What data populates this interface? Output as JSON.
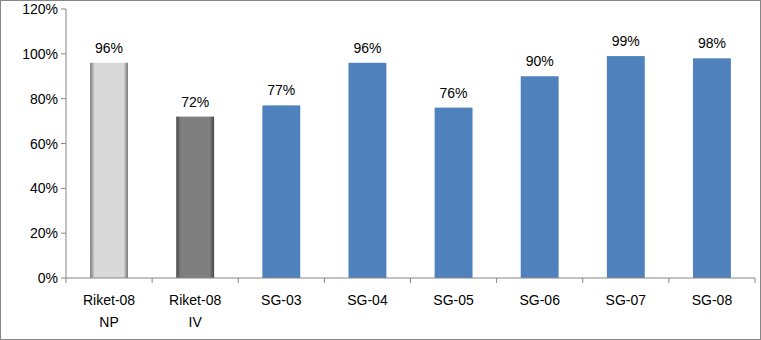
{
  "chart_data": {
    "type": "bar",
    "categories": [
      "Riket-08 NP",
      "Riket-08 IV",
      "SG-03",
      "SG-04",
      "SG-05",
      "SG-06",
      "SG-07",
      "SG-08"
    ],
    "values": [
      96,
      72,
      77,
      96,
      76,
      90,
      99,
      98
    ],
    "value_labels": [
      "96%",
      "72%",
      "77%",
      "96%",
      "76%",
      "90%",
      "99%",
      "98%"
    ],
    "colors": [
      "#d9d9d9",
      "#7f7f7f",
      "#4f81bd",
      "#4f81bd",
      "#4f81bd",
      "#4f81bd",
      "#4f81bd",
      "#4f81bd"
    ],
    "ylim": [
      0,
      120
    ],
    "yticks": [
      {
        "value": 0,
        "label": "0%"
      },
      {
        "value": 20,
        "label": "20%"
      },
      {
        "value": 40,
        "label": "40%"
      },
      {
        "value": 60,
        "label": "60%"
      },
      {
        "value": 80,
        "label": "80%"
      },
      {
        "value": 100,
        "label": "100%"
      },
      {
        "value": 120,
        "label": "120%"
      }
    ],
    "grid": false,
    "data_labels": true
  }
}
